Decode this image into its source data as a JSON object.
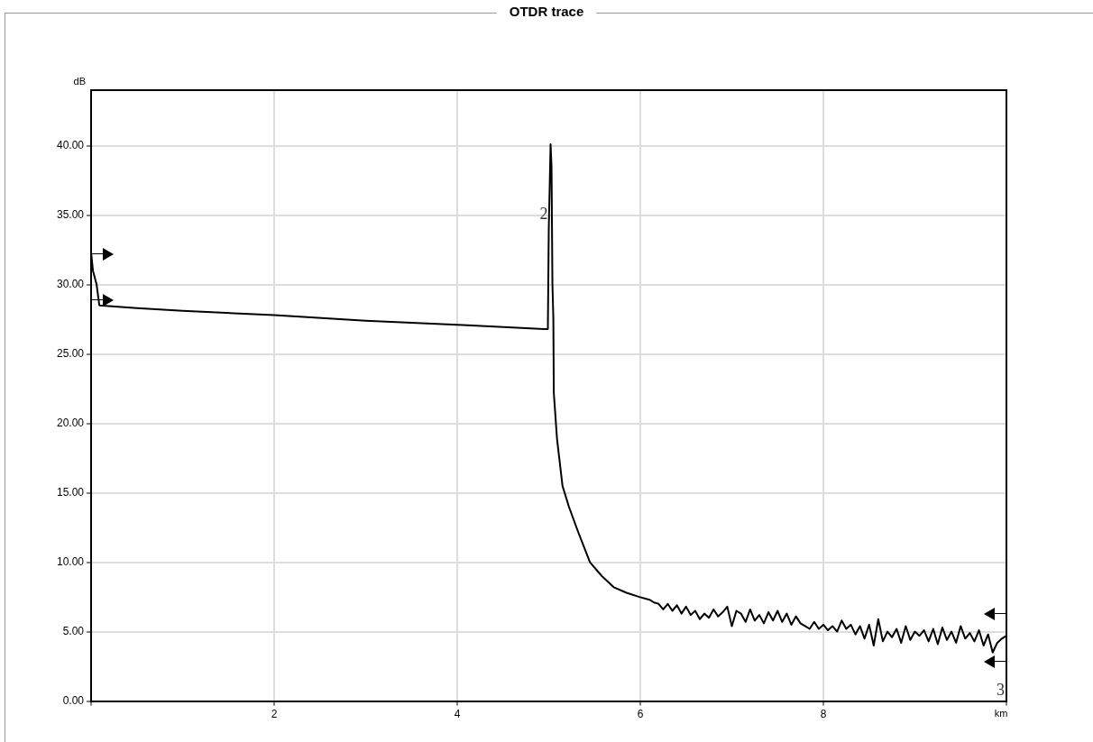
{
  "chart_data": {
    "type": "line",
    "title": "OTDR trace",
    "xlabel": "km",
    "ylabel": "dB",
    "xlim": [
      0,
      10
    ],
    "ylim": [
      0,
      44
    ],
    "xticks": [
      {
        "value": 0,
        "label": null
      },
      2,
      4,
      6,
      8,
      {
        "value": 10,
        "label": null
      }
    ],
    "yticks": [
      {
        "value": 0,
        "label": "0.00"
      },
      {
        "value": 5,
        "label": "5.00"
      },
      {
        "value": 10,
        "label": "10.00"
      },
      {
        "value": 15,
        "label": "15.00"
      },
      {
        "value": 20,
        "label": "20.00"
      },
      {
        "value": 25,
        "label": "25.00"
      },
      {
        "value": 30,
        "label": "30.00"
      },
      {
        "value": 35,
        "label": "35.00"
      },
      {
        "value": 40,
        "label": "40.00"
      }
    ],
    "grid": true,
    "legend": false,
    "marker": "none",
    "line_style": "solid",
    "annotations": [
      {
        "text": "2",
        "x": 5.0,
        "y": 35
      },
      "3"
    ],
    "series": [
      {
        "color": "#000000",
        "x": [
          0,
          0.02,
          0.06,
          0.09,
          0.5,
          1,
          2,
          3,
          4,
          4.95,
          4.99,
          5.0,
          5.02,
          5.03,
          5.04,
          5.05,
          5.055,
          5.09,
          5.15,
          5.22,
          5.32,
          5.45,
          5.58,
          5.71,
          5.85,
          5.99,
          6.1,
          6.15,
          6.2,
          6.25,
          6.3,
          6.35,
          6.4,
          6.45,
          6.5,
          6.55,
          6.6,
          6.65,
          6.7,
          6.75,
          6.8,
          6.85,
          6.9,
          6.95,
          7.0,
          7.05,
          7.1,
          7.15,
          7.2,
          7.25,
          7.3,
          7.35,
          7.4,
          7.45,
          7.5,
          7.55,
          7.6,
          7.65,
          7.7,
          7.75,
          7.8,
          7.85,
          7.9,
          7.95,
          8.0,
          8.05,
          8.1,
          8.15,
          8.2,
          8.25,
          8.3,
          8.35,
          8.4,
          8.45,
          8.5,
          8.55,
          8.6,
          8.65,
          8.7,
          8.75,
          8.8,
          8.85,
          8.9,
          8.95,
          9.0,
          9.05,
          9.1,
          9.15,
          9.2,
          9.25,
          9.3,
          9.35,
          9.4,
          9.45,
          9.5,
          9.55,
          9.6,
          9.65,
          9.7,
          9.75,
          9.8,
          9.85,
          9.9,
          9.95,
          10
        ],
        "values": [
          32.3,
          31.0,
          30.0,
          28.5,
          28.3,
          28.1,
          27.8,
          27.4,
          27.1,
          26.8,
          26.8,
          34,
          40.1,
          38.5,
          30,
          27.6,
          22.2,
          18.9,
          15.5,
          14.0,
          12.2,
          10.0,
          9.0,
          8.2,
          7.8,
          7.5,
          7.3,
          7.1,
          7.0,
          6.6,
          7.0,
          6.5,
          6.9,
          6.3,
          6.8,
          6.2,
          6.5,
          5.9,
          6.3,
          6.0,
          6.6,
          6.1,
          6.4,
          6.8,
          5.4,
          6.5,
          6.3,
          5.7,
          6.6,
          5.8,
          6.2,
          5.6,
          6.4,
          5.8,
          6.5,
          5.7,
          6.3,
          5.5,
          6.1,
          5.6,
          5.4,
          5.2,
          5.7,
          5.2,
          5.5,
          5.1,
          5.4,
          5.0,
          5.8,
          5.2,
          5.5,
          4.8,
          5.4,
          4.5,
          5.5,
          4.0,
          5.9,
          4.3,
          5.0,
          4.6,
          5.2,
          4.2,
          5.4,
          4.4,
          5.0,
          4.7,
          5.1,
          4.3,
          5.2,
          4.1,
          5.3,
          4.4,
          5.0,
          4.2,
          5.4,
          4.5,
          4.9,
          4.3,
          5.1,
          4.0,
          4.8,
          3.5,
          4.2,
          4.5,
          4.7
        ]
      }
    ]
  }
}
